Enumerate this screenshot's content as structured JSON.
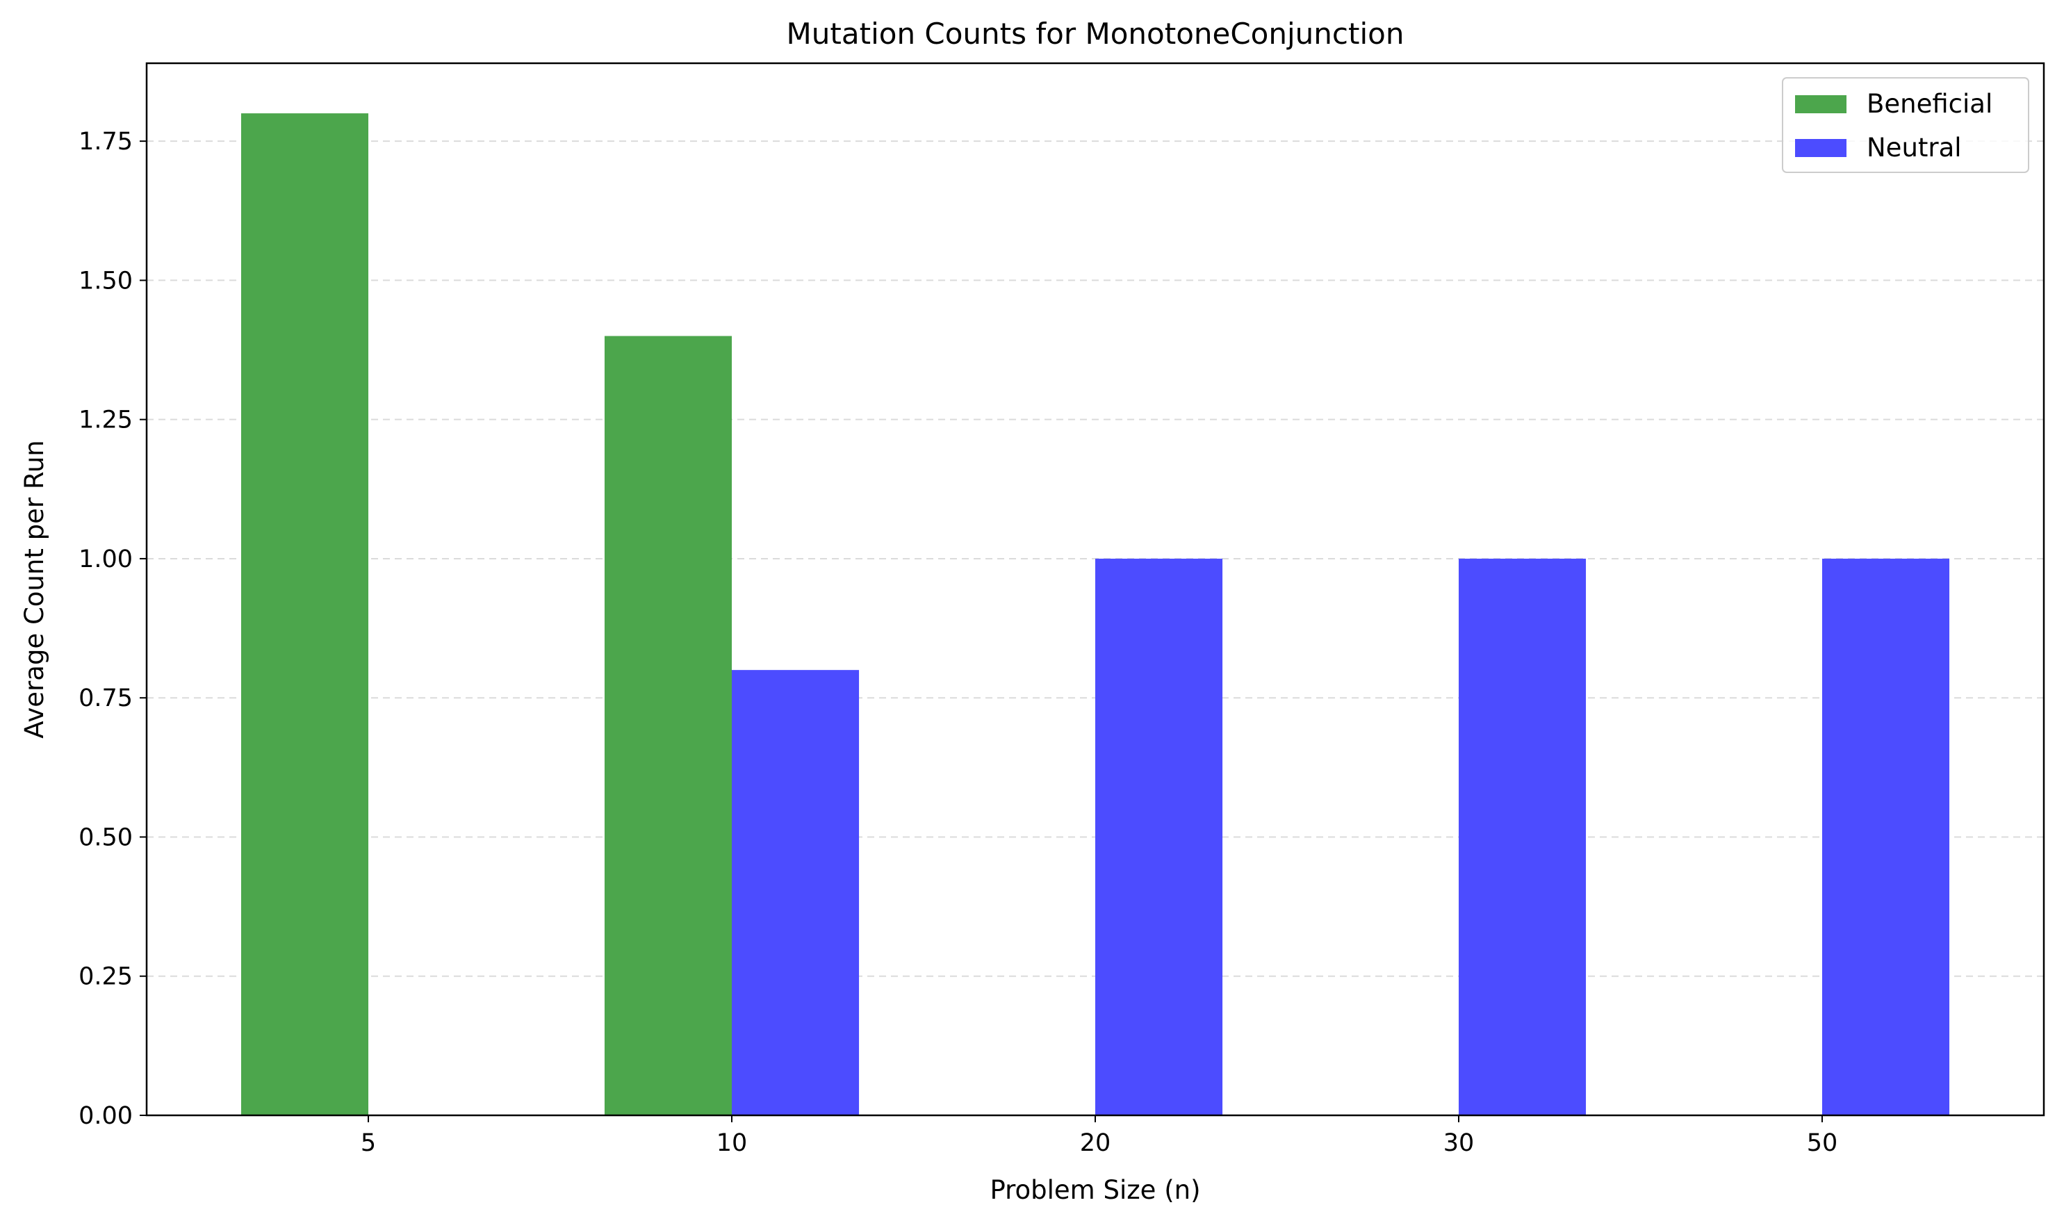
{
  "chart_data": {
    "type": "bar",
    "title": "Mutation Counts for MonotoneConjunction",
    "xlabel": "Problem Size (n)",
    "ylabel": "Average Count per Run",
    "categories": [
      "5",
      "10",
      "20",
      "30",
      "50"
    ],
    "series": [
      {
        "name": "Beneficial",
        "values": [
          1.8,
          1.4,
          0,
          0,
          0
        ],
        "color": "#4ca64c"
      },
      {
        "name": "Neutral",
        "values": [
          0,
          0.8,
          1.0,
          1.0,
          1.0
        ],
        "color": "#4c4cff"
      }
    ],
    "ylim": [
      0,
      1.89
    ],
    "yticks": [
      "0.00",
      "0.25",
      "0.50",
      "0.75",
      "1.00",
      "1.25",
      "1.50",
      "1.75"
    ],
    "grid": "y-axis dashed",
    "legend_position": "top-right"
  }
}
